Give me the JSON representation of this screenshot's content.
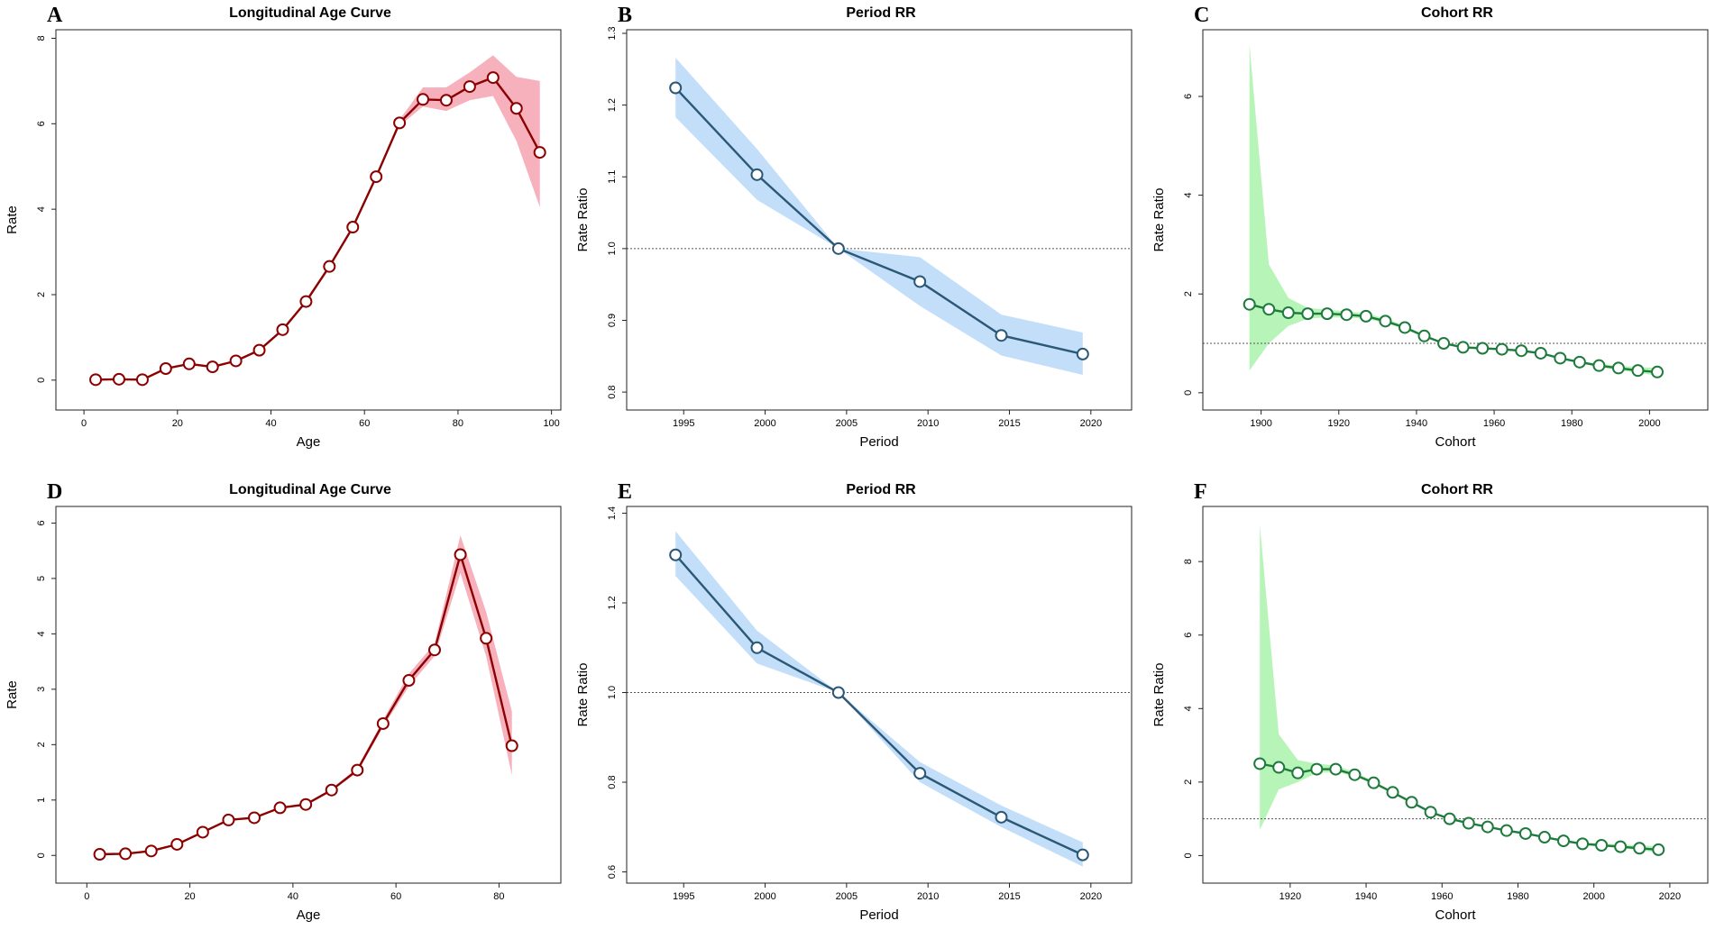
{
  "chart_data": [
    {
      "panel": "A",
      "type": "line",
      "title": "Longitudinal Age Curve",
      "xlabel": "Age",
      "ylabel": "Rate",
      "xlim": [
        -6,
        102
      ],
      "ylim": [
        -0.7,
        8.2
      ],
      "xticks": [
        0,
        20,
        40,
        60,
        80,
        100
      ],
      "yticks": [
        0,
        2,
        4,
        6,
        8
      ],
      "ytick_decimals": 0,
      "reference_line": null,
      "colors": {
        "line": "#8b0000",
        "band": "#f4a3b0",
        "marker_fill": "#ffffff"
      },
      "x": [
        2.5,
        7.5,
        12.5,
        17.5,
        22.5,
        27.5,
        32.5,
        37.5,
        42.5,
        47.5,
        52.5,
        57.5,
        62.5,
        67.5,
        72.5,
        77.5,
        82.5,
        87.5,
        92.5,
        97.5
      ],
      "y": [
        0.01,
        0.02,
        0.01,
        0.27,
        0.38,
        0.31,
        0.45,
        0.7,
        1.18,
        1.84,
        2.66,
        3.58,
        4.76,
        6.02,
        6.57,
        6.55,
        6.87,
        7.08,
        6.36,
        5.33
      ],
      "lower": [
        0.01,
        0.02,
        0.01,
        0.26,
        0.37,
        0.3,
        0.44,
        0.69,
        1.16,
        1.82,
        2.63,
        3.55,
        4.72,
        5.95,
        6.4,
        6.3,
        6.55,
        6.65,
        5.6,
        4.05
      ],
      "upper": [
        0.01,
        0.02,
        0.01,
        0.28,
        0.39,
        0.32,
        0.46,
        0.71,
        1.2,
        1.86,
        2.69,
        3.61,
        4.8,
        6.09,
        6.85,
        6.85,
        7.2,
        7.6,
        7.1,
        7.0
      ]
    },
    {
      "panel": "B",
      "type": "line",
      "title": "Period RR",
      "xlabel": "Period",
      "ylabel": "Rate Ratio",
      "xlim": [
        1991.5,
        2022.5
      ],
      "ylim": [
        0.775,
        1.305
      ],
      "xticks": [
        1995,
        2000,
        2005,
        2010,
        2015,
        2020
      ],
      "yticks": [
        0.8,
        0.9,
        1.0,
        1.1,
        1.2,
        1.3
      ],
      "ytick_decimals": 1,
      "reference_line": 1.0,
      "colors": {
        "line": "#2b5876",
        "band": "#b8d8f8",
        "marker_fill": "#ffffff"
      },
      "x": [
        1994.5,
        1999.5,
        2004.5,
        2009.5,
        2014.5,
        2019.5
      ],
      "y": [
        1.224,
        1.103,
        1.0,
        0.954,
        0.879,
        0.853
      ],
      "lower": [
        1.183,
        1.068,
        1.0,
        0.92,
        0.851,
        0.824
      ],
      "upper": [
        1.266,
        1.139,
        1.0,
        0.988,
        0.908,
        0.883
      ]
    },
    {
      "panel": "C",
      "type": "line",
      "title": "Cohort RR",
      "xlabel": "Cohort",
      "ylabel": "Rate Ratio",
      "xlim": [
        1885,
        2015
      ],
      "ylim": [
        -0.35,
        7.35
      ],
      "xticks": [
        1900,
        1920,
        1940,
        1960,
        1980,
        2000
      ],
      "yticks": [
        0,
        2,
        4,
        6
      ],
      "ytick_decimals": 0,
      "reference_line": 1.0,
      "colors": {
        "line": "#1f7a3d",
        "band": "#aaf2aa",
        "marker_fill": "#ffffff"
      },
      "x": [
        1897,
        1902,
        1907,
        1912,
        1917,
        1922,
        1927,
        1932,
        1937,
        1942,
        1947,
        1952,
        1957,
        1962,
        1967,
        1972,
        1977,
        1982,
        1987,
        1992,
        1997,
        2002
      ],
      "y": [
        1.79,
        1.69,
        1.62,
        1.6,
        1.6,
        1.58,
        1.55,
        1.45,
        1.32,
        1.15,
        1.0,
        0.92,
        0.9,
        0.88,
        0.85,
        0.8,
        0.7,
        0.62,
        0.55,
        0.5,
        0.45,
        0.42
      ],
      "lower": [
        0.45,
        1.0,
        1.35,
        1.5,
        1.53,
        1.52,
        1.5,
        1.41,
        1.29,
        1.13,
        1.0,
        0.91,
        0.89,
        0.87,
        0.83,
        0.78,
        0.68,
        0.6,
        0.52,
        0.46,
        0.4,
        0.35
      ],
      "upper": [
        7.05,
        2.6,
        1.92,
        1.72,
        1.68,
        1.65,
        1.61,
        1.5,
        1.36,
        1.17,
        1.0,
        0.93,
        0.91,
        0.9,
        0.87,
        0.82,
        0.72,
        0.64,
        0.58,
        0.55,
        0.52,
        0.5
      ]
    },
    {
      "panel": "D",
      "type": "line",
      "title": "Longitudinal Age Curve",
      "xlabel": "Age",
      "ylabel": "Rate",
      "xlim": [
        -6,
        92
      ],
      "ylim": [
        -0.5,
        6.3
      ],
      "xticks": [
        0,
        20,
        40,
        60,
        80
      ],
      "yticks": [
        0,
        1,
        2,
        3,
        4,
        5,
        6
      ],
      "ytick_decimals": 0,
      "reference_line": null,
      "colors": {
        "line": "#8b0000",
        "band": "#f4a3b0",
        "marker_fill": "#ffffff"
      },
      "x": [
        2.5,
        7.5,
        12.5,
        17.5,
        22.5,
        27.5,
        32.5,
        37.5,
        42.5,
        47.5,
        52.5,
        57.5,
        62.5,
        67.5,
        72.5,
        77.5,
        82.5
      ],
      "y": [
        0.02,
        0.03,
        0.08,
        0.2,
        0.42,
        0.64,
        0.68,
        0.86,
        0.92,
        1.18,
        1.54,
        2.38,
        3.16,
        3.71,
        5.43,
        3.92,
        1.98
      ],
      "lower": [
        0.02,
        0.03,
        0.08,
        0.2,
        0.41,
        0.63,
        0.67,
        0.85,
        0.91,
        1.16,
        1.5,
        2.32,
        3.05,
        3.6,
        5.1,
        3.6,
        1.45
      ],
      "upper": [
        0.02,
        0.03,
        0.08,
        0.2,
        0.43,
        0.65,
        0.69,
        0.87,
        0.93,
        1.2,
        1.58,
        2.45,
        3.28,
        3.82,
        5.78,
        4.4,
        2.6
      ]
    },
    {
      "panel": "E",
      "type": "line",
      "title": "Period RR",
      "xlabel": "Period",
      "ylabel": "Rate Ratio",
      "xlim": [
        1991.5,
        2022.5
      ],
      "ylim": [
        0.575,
        1.415
      ],
      "xticks": [
        1995,
        2000,
        2005,
        2010,
        2015,
        2020
      ],
      "yticks": [
        0.6,
        0.8,
        1.0,
        1.2,
        1.4
      ],
      "ytick_decimals": 1,
      "reference_line": 1.0,
      "colors": {
        "line": "#2b5876",
        "band": "#b8d8f8",
        "marker_fill": "#ffffff"
      },
      "x": [
        1994.5,
        1999.5,
        2004.5,
        2009.5,
        2014.5,
        2019.5
      ],
      "y": [
        1.307,
        1.1,
        1.0,
        0.82,
        0.722,
        0.638
      ],
      "lower": [
        1.26,
        1.065,
        1.0,
        0.8,
        0.7,
        0.612
      ],
      "upper": [
        1.36,
        1.138,
        1.0,
        0.845,
        0.748,
        0.666
      ]
    },
    {
      "panel": "F",
      "type": "line",
      "title": "Cohort RR",
      "xlabel": "Cohort",
      "ylabel": "Rate Ratio",
      "xlim": [
        1897,
        2030
      ],
      "ylim": [
        -0.75,
        9.5
      ],
      "xticks": [
        1920,
        1940,
        1960,
        1980,
        2000,
        2020
      ],
      "yticks": [
        0,
        2,
        4,
        6,
        8
      ],
      "ytick_decimals": 0,
      "reference_line": 1.0,
      "colors": {
        "line": "#1f7a3d",
        "band": "#aaf2aa",
        "marker_fill": "#ffffff"
      },
      "x": [
        1912,
        1917,
        1922,
        1927,
        1932,
        1937,
        1942,
        1947,
        1952,
        1957,
        1962,
        1967,
        1972,
        1977,
        1982,
        1987,
        1992,
        1997,
        2002,
        2007,
        2012,
        2017
      ],
      "y": [
        2.5,
        2.4,
        2.25,
        2.35,
        2.35,
        2.2,
        1.98,
        1.72,
        1.45,
        1.18,
        1.0,
        0.88,
        0.78,
        0.68,
        0.6,
        0.5,
        0.4,
        0.32,
        0.28,
        0.24,
        0.2,
        0.16
      ],
      "lower": [
        0.7,
        1.8,
        2.0,
        2.25,
        2.28,
        2.15,
        1.95,
        1.7,
        1.43,
        1.17,
        1.0,
        0.87,
        0.77,
        0.67,
        0.58,
        0.48,
        0.38,
        0.3,
        0.25,
        0.2,
        0.15,
        0.08
      ],
      "upper": [
        9.0,
        3.3,
        2.6,
        2.5,
        2.45,
        2.27,
        2.02,
        1.75,
        1.48,
        1.2,
        1.0,
        0.89,
        0.8,
        0.7,
        0.62,
        0.53,
        0.43,
        0.36,
        0.33,
        0.3,
        0.28,
        0.25
      ]
    }
  ]
}
